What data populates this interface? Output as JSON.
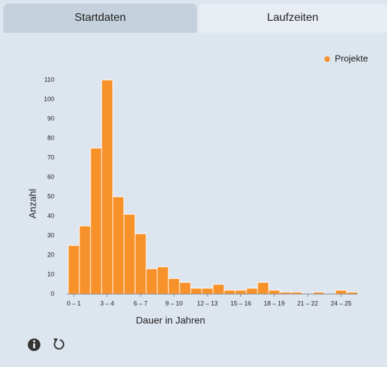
{
  "tabs": [
    "Startdaten",
    "Laufzeiten"
  ],
  "chart_data": {
    "type": "bar",
    "x_label": "Dauer in Jahren",
    "y_label": "Anzahl",
    "categories": [
      "0 – 1",
      null,
      null,
      "3 – 4",
      null,
      null,
      "6 – 7",
      null,
      null,
      "9 – 10",
      null,
      null,
      "12 – 13",
      null,
      null,
      "15 – 16",
      null,
      null,
      "18 – 19",
      null,
      null,
      "21 – 22",
      null,
      null,
      "24 – 25",
      null
    ],
    "series": [
      {
        "name": "Projekte",
        "color": "#f7922b",
        "values": [
          25,
          35,
          75,
          110,
          50,
          41,
          31,
          13,
          14,
          8,
          6,
          3,
          3,
          5,
          2,
          2,
          3,
          6,
          2,
          1,
          1,
          0,
          1,
          0,
          2,
          1
        ]
      }
    ],
    "ylim": [
      0,
      110
    ],
    "yticks": [
      0,
      10,
      20,
      30,
      40,
      50,
      60,
      70,
      80,
      90,
      100,
      110
    ],
    "legend": "top-right",
    "grid": false
  }
}
